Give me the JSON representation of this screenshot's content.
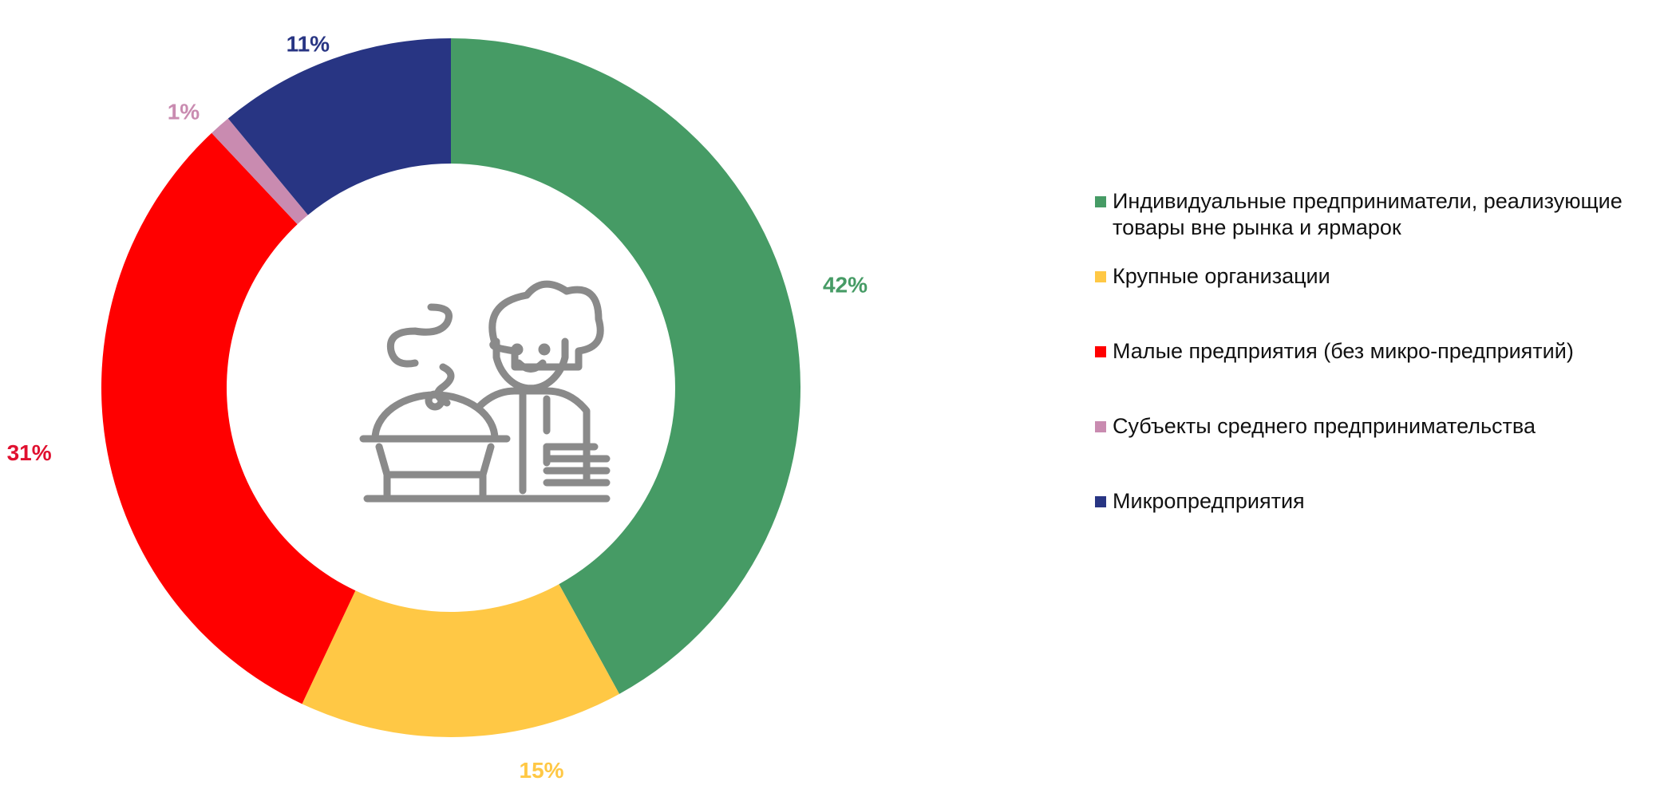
{
  "chart_data": {
    "type": "donut",
    "categories": [
      "Индивидуальные предприниматели, реализующие товары вне  рынка и ярмарок",
      "Крупные организации",
      "Малые предприятия (без микро-предприятий)",
      "Субъекты среднего предпринимательства",
      "Микропредприятия"
    ],
    "values": [
      42,
      15,
      31,
      1,
      11
    ],
    "value_labels": [
      "42%",
      "15%",
      "31%",
      "1%",
      "11%"
    ],
    "colors": [
      "#469b65",
      "#ffc845",
      "#ff0000",
      "#c98bb0",
      "#283583"
    ],
    "label_colors": [
      "#469b65",
      "#ffc845",
      "#e0102f",
      "#c98bb0",
      "#283583"
    ],
    "legend": "right"
  }
}
